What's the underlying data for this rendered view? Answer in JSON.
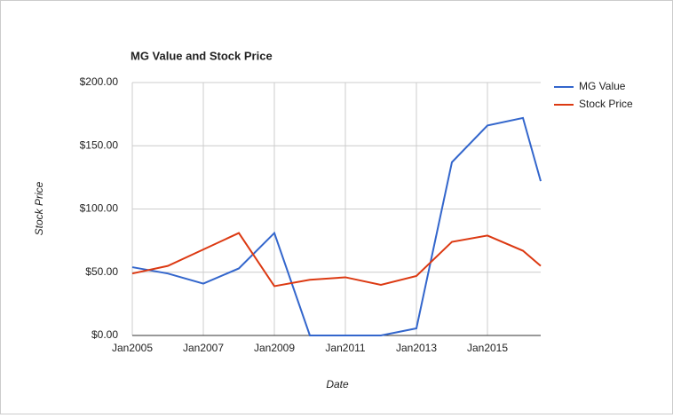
{
  "chart_data": {
    "type": "line",
    "title": "MG Value and Stock Price",
    "x_label": "Date",
    "y_label": "Stock Price",
    "x": [
      2005,
      2006,
      2007,
      2008,
      2009,
      2010,
      2011,
      2012,
      2013,
      2014,
      2015,
      2016,
      2016.5
    ],
    "series": [
      {
        "name": "MG Value",
        "color": "#3366cc",
        "values": [
          54,
          49,
          41,
          53,
          81,
          0,
          0,
          0,
          5.6,
          137,
          166,
          172,
          122
        ]
      },
      {
        "name": "Stock Price",
        "color": "#dc3912",
        "values": [
          49,
          55,
          68,
          81,
          39,
          44,
          46,
          40,
          47,
          74,
          79,
          67,
          55
        ]
      }
    ],
    "xlim": [
      2005,
      2016.5
    ],
    "xticks": [
      {
        "value": 2005,
        "label": "Jan2005"
      },
      {
        "value": 2007,
        "label": "Jan2007"
      },
      {
        "value": 2009,
        "label": "Jan2009"
      },
      {
        "value": 2011,
        "label": "Jan2011"
      },
      {
        "value": 2013,
        "label": "Jan2013"
      },
      {
        "value": 2015,
        "label": "Jan2015"
      }
    ],
    "ylim": [
      0,
      200
    ],
    "yticks": [
      {
        "value": 0,
        "label": "$0.00"
      },
      {
        "value": 50,
        "label": "$50.00"
      },
      {
        "value": 100,
        "label": "$100.00"
      },
      {
        "value": 150,
        "label": "$150.00"
      },
      {
        "value": 200,
        "label": "$200.00"
      }
    ],
    "grid": true,
    "legend": "right"
  }
}
